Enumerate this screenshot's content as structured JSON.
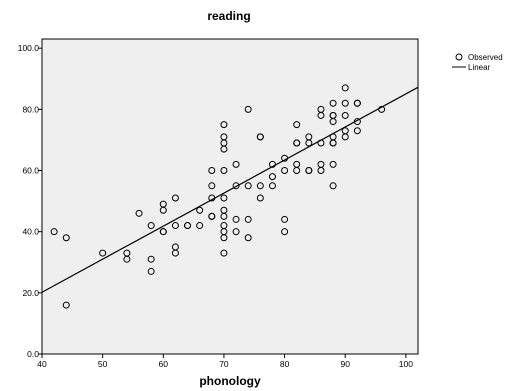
{
  "chart_data": {
    "type": "scatter",
    "title": "reading",
    "xlabel": "phonology",
    "ylabel": "",
    "xlim": [
      40,
      102
    ],
    "ylim": [
      0,
      103
    ],
    "x_ticks": [
      40,
      50,
      60,
      70,
      80,
      90,
      100
    ],
    "y_ticks": [
      0,
      20,
      40,
      60,
      80,
      100
    ],
    "x_tick_labels": [
      "40",
      "50",
      "60",
      "70",
      "80",
      "90",
      "100"
    ],
    "y_tick_labels": [
      "0.0",
      "20.0",
      "40.0",
      "60.0",
      "80.0",
      "100.0"
    ],
    "grid": false,
    "legend_position": "top-right",
    "legend": [
      {
        "label": "Observed",
        "marker": "circle"
      },
      {
        "label": "Linear",
        "marker": "line"
      }
    ],
    "plot_background": "#efefef",
    "marker_color": "#000000",
    "line_color": "#000000",
    "series": [
      {
        "name": "Observed",
        "points": [
          [
            42,
            40
          ],
          [
            44,
            38
          ],
          [
            44,
            16
          ],
          [
            50,
            33
          ],
          [
            54,
            33
          ],
          [
            54,
            31
          ],
          [
            56,
            46
          ],
          [
            58,
            42
          ],
          [
            58,
            31
          ],
          [
            58,
            27
          ],
          [
            60,
            49
          ],
          [
            60,
            47
          ],
          [
            60,
            40
          ],
          [
            60,
            40
          ],
          [
            62,
            51
          ],
          [
            62,
            42
          ],
          [
            62,
            35
          ],
          [
            62,
            33
          ],
          [
            64,
            42
          ],
          [
            64,
            42
          ],
          [
            66,
            47
          ],
          [
            66,
            42
          ],
          [
            68,
            60
          ],
          [
            68,
            55
          ],
          [
            68,
            51
          ],
          [
            68,
            45
          ],
          [
            68,
            45
          ],
          [
            70,
            75
          ],
          [
            70,
            71
          ],
          [
            70,
            69
          ],
          [
            70,
            67
          ],
          [
            70,
            60
          ],
          [
            70,
            51
          ],
          [
            70,
            47
          ],
          [
            70,
            45
          ],
          [
            70,
            42
          ],
          [
            70,
            40
          ],
          [
            70,
            38
          ],
          [
            70,
            33
          ],
          [
            72,
            62
          ],
          [
            72,
            55
          ],
          [
            72,
            44
          ],
          [
            72,
            40
          ],
          [
            74,
            80
          ],
          [
            74,
            55
          ],
          [
            74,
            44
          ],
          [
            74,
            38
          ],
          [
            76,
            71
          ],
          [
            76,
            71
          ],
          [
            76,
            55
          ],
          [
            76,
            51
          ],
          [
            78,
            62
          ],
          [
            78,
            58
          ],
          [
            78,
            55
          ],
          [
            80,
            64
          ],
          [
            80,
            60
          ],
          [
            80,
            44
          ],
          [
            80,
            40
          ],
          [
            82,
            75
          ],
          [
            82,
            69
          ],
          [
            82,
            69
          ],
          [
            82,
            62
          ],
          [
            82,
            60
          ],
          [
            84,
            71
          ],
          [
            84,
            69
          ],
          [
            84,
            60
          ],
          [
            84,
            60
          ],
          [
            86,
            80
          ],
          [
            86,
            78
          ],
          [
            86,
            69
          ],
          [
            86,
            62
          ],
          [
            86,
            60
          ],
          [
            88,
            82
          ],
          [
            88,
            78
          ],
          [
            88,
            78
          ],
          [
            88,
            76
          ],
          [
            88,
            71
          ],
          [
            88,
            69
          ],
          [
            88,
            69
          ],
          [
            88,
            62
          ],
          [
            88,
            55
          ],
          [
            90,
            87
          ],
          [
            90,
            82
          ],
          [
            90,
            78
          ],
          [
            90,
            73
          ],
          [
            90,
            71
          ],
          [
            92,
            82
          ],
          [
            92,
            82
          ],
          [
            92,
            76
          ],
          [
            92,
            73
          ],
          [
            96,
            80
          ]
        ]
      },
      {
        "name": "Linear",
        "line": [
          [
            40,
            20.2
          ],
          [
            102,
            87.2
          ]
        ]
      }
    ]
  }
}
